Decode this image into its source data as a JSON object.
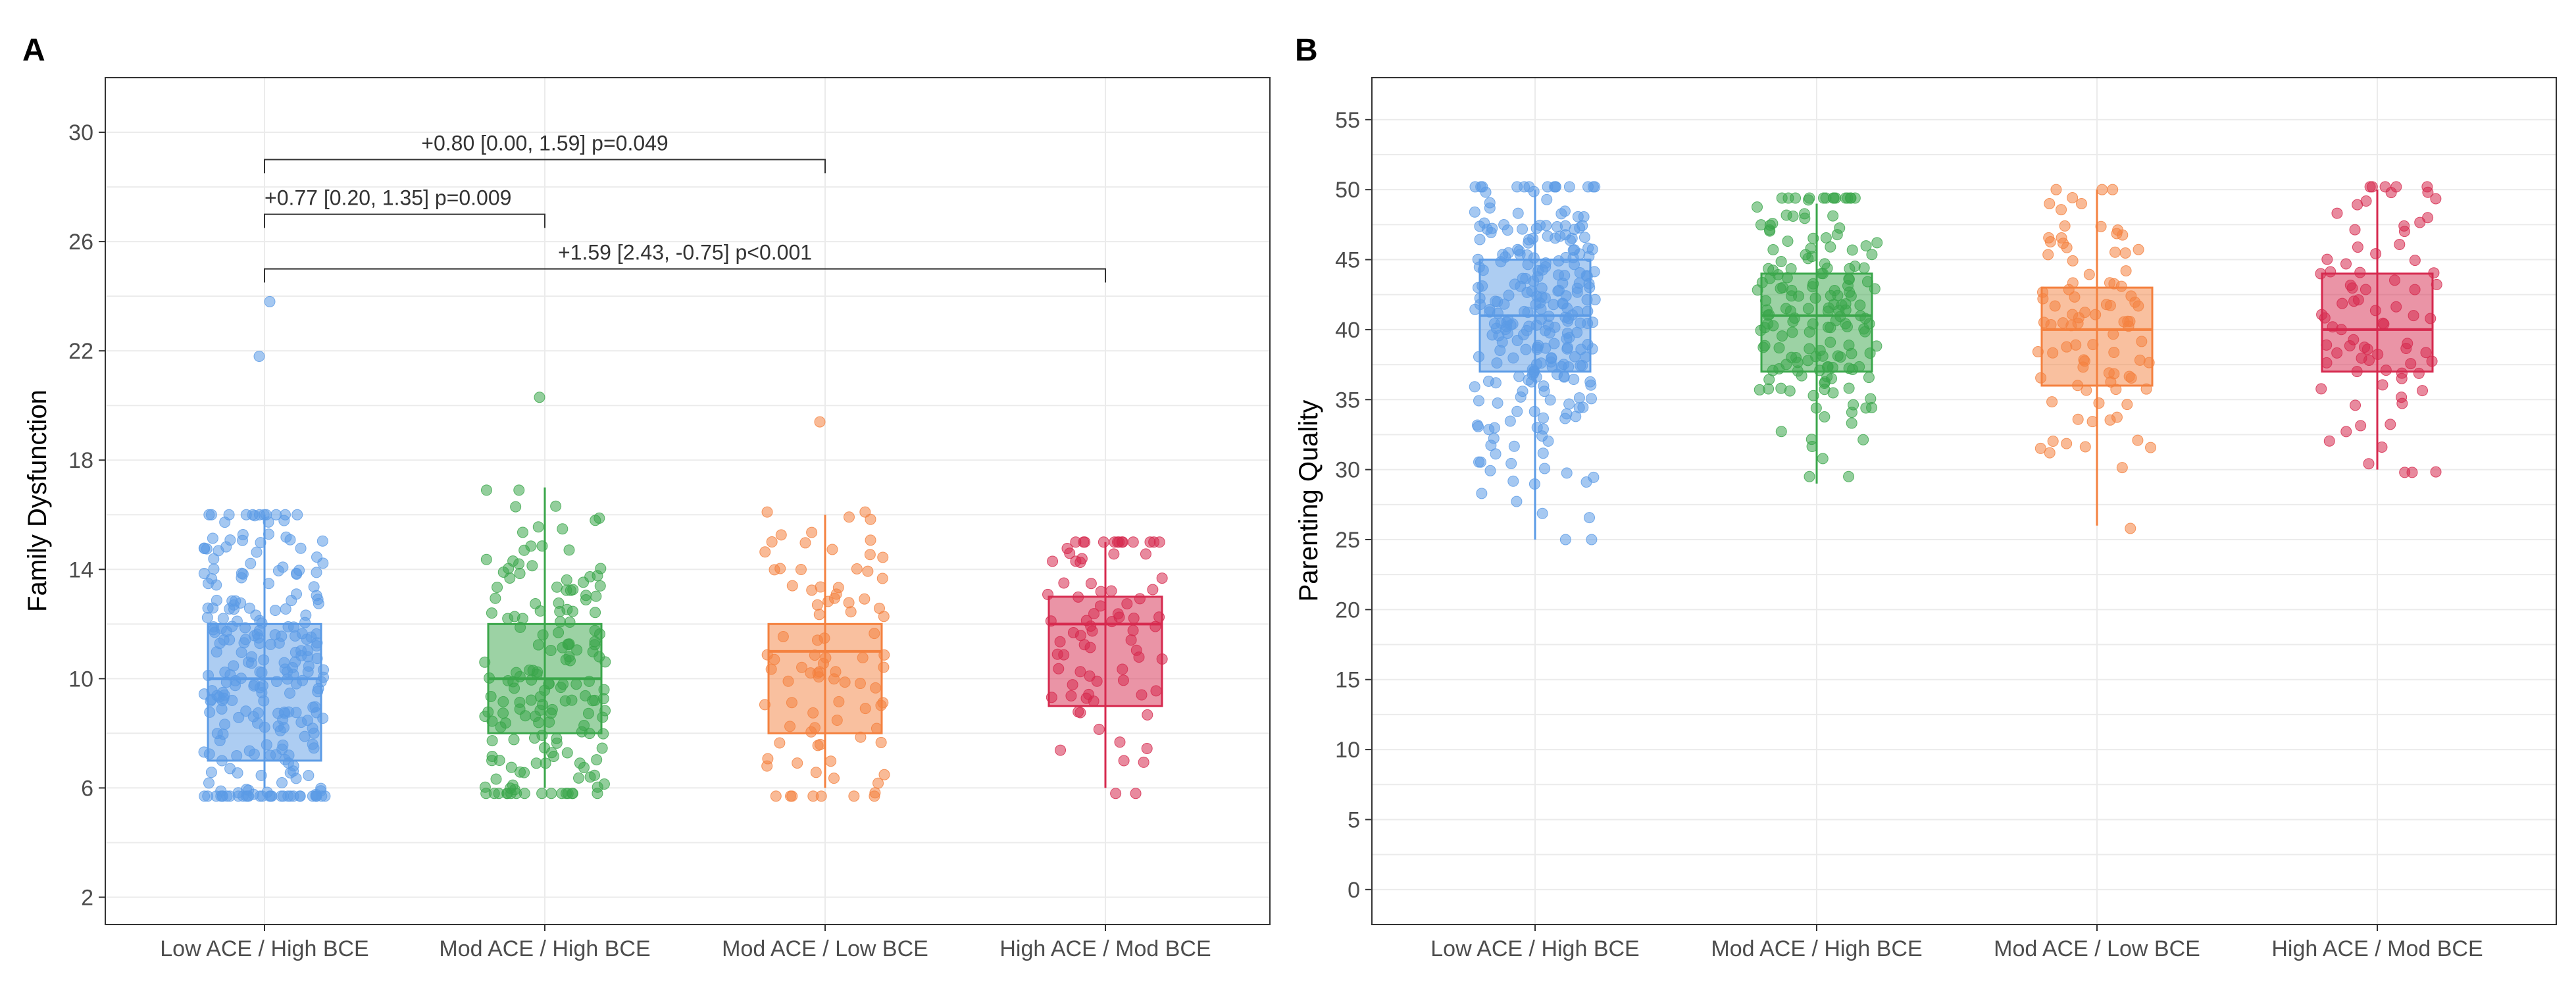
{
  "chart_data": [
    {
      "panel": "A",
      "type": "box",
      "ylabel": "Family Dysfunction",
      "xlabel": "",
      "ylim": [
        1,
        32
      ],
      "yticks": [
        2,
        6,
        10,
        14,
        18,
        22,
        26,
        30
      ],
      "grid": true,
      "categories": [
        "Low ACE / High BCE",
        "Mod ACE / High BCE",
        "Mod ACE / Low BCE",
        "High ACE / Mod BCE"
      ],
      "colors": [
        "#5b9be6",
        "#3aa64a",
        "#f4813f",
        "#d6294e"
      ],
      "boxes": [
        {
          "q1": 7,
          "median": 10,
          "q3": 12,
          "whisker_low": 6,
          "whisker_high": 16,
          "point_min": 5.7,
          "point_max": 16,
          "n_points": 260,
          "outliers": [
            21.8,
            23.8
          ]
        },
        {
          "q1": 8,
          "median": 10,
          "q3": 12,
          "whisker_low": 6,
          "whisker_high": 17,
          "point_min": 5.8,
          "point_max": 16.9,
          "n_points": 170,
          "outliers": [
            20.3
          ]
        },
        {
          "q1": 8,
          "median": 11,
          "q3": 12,
          "whisker_low": 6,
          "whisker_high": 16,
          "point_min": 5.7,
          "point_max": 16.1,
          "n_points": 90,
          "outliers": [
            19.4
          ]
        },
        {
          "q1": 9,
          "median": 12,
          "q3": 13,
          "whisker_low": 6,
          "whisker_high": 15,
          "point_min": 5.8,
          "point_max": 15,
          "n_points": 80,
          "outliers": []
        }
      ],
      "annotations": [
        {
          "text": "+0.80 [0.00, 1.59] p=0.049",
          "from": 0,
          "to": 2,
          "y": 29,
          "tick_y": 28.5,
          "text_pos": "center"
        },
        {
          "text": "+0.77 [0.20, 1.35] p=0.009",
          "from": 0,
          "to": 1,
          "y": 27,
          "tick_y": 26.5,
          "text_pos": "left"
        },
        {
          "text": "+1.59 [2.43, -0.75] p<0.001",
          "from": 0,
          "to": 3,
          "y": 25,
          "tick_y": 24.5,
          "text_pos": "center"
        }
      ]
    },
    {
      "panel": "B",
      "type": "box",
      "ylabel": "Parenting Quality",
      "xlabel": "",
      "ylim": [
        -2.5,
        58
      ],
      "yticks": [
        0,
        5,
        10,
        15,
        20,
        25,
        30,
        35,
        40,
        45,
        50,
        55
      ],
      "grid": true,
      "categories": [
        "Low ACE / High BCE",
        "Mod ACE / High BCE",
        "Mod ACE / Low BCE",
        "High ACE / Mod BCE"
      ],
      "colors": [
        "#5b9be6",
        "#3aa64a",
        "#f4813f",
        "#d6294e"
      ],
      "boxes": [
        {
          "q1": 37,
          "median": 41,
          "q3": 45,
          "whisker_low": 25,
          "whisker_high": 50,
          "point_min": 25,
          "point_max": 50.2,
          "n_points": 260,
          "outliers": []
        },
        {
          "q1": 37,
          "median": 41,
          "q3": 44,
          "whisker_low": 29,
          "whisker_high": 49,
          "point_min": 29.5,
          "point_max": 49.4,
          "n_points": 170,
          "outliers": []
        },
        {
          "q1": 36,
          "median": 40,
          "q3": 43,
          "whisker_low": 26,
          "whisker_high": 50,
          "point_min": 25.8,
          "point_max": 50,
          "n_points": 90,
          "outliers": []
        },
        {
          "q1": 37,
          "median": 40,
          "q3": 44,
          "whisker_low": 30,
          "whisker_high": 50,
          "point_min": 29.8,
          "point_max": 50.2,
          "n_points": 80,
          "outliers": []
        }
      ],
      "annotations": []
    }
  ]
}
